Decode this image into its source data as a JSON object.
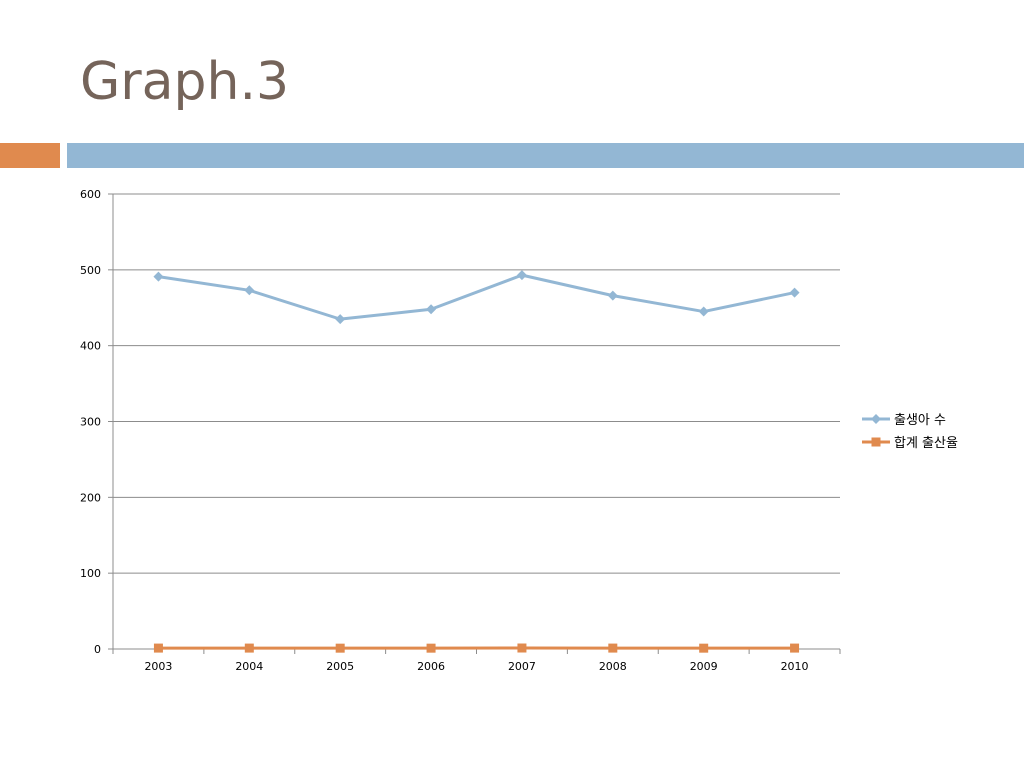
{
  "slide": {
    "title": "Graph.3"
  },
  "colors": {
    "accent_orange": "#e08a4e",
    "accent_blue": "#93b7d4",
    "title": "#75645a"
  },
  "chart_data": {
    "type": "line",
    "title": "",
    "xlabel": "",
    "ylabel": "",
    "categories": [
      "2003",
      "2004",
      "2005",
      "2006",
      "2007",
      "2008",
      "2009",
      "2010"
    ],
    "ylim": [
      0,
      600
    ],
    "yticks": [
      "0",
      "100",
      "200",
      "300",
      "400",
      "500",
      "600"
    ],
    "grid": true,
    "legend_position": "right",
    "series": [
      {
        "name": "출생아 수",
        "color": "#93b7d4",
        "marker": "diamond",
        "values": [
          491,
          473,
          435,
          448,
          493,
          466,
          445,
          470
        ]
      },
      {
        "name": "합계 출산율",
        "color": "#e08a4e",
        "marker": "square",
        "values": [
          1.2,
          1.2,
          1.1,
          1.1,
          1.3,
          1.2,
          1.1,
          1.2
        ]
      }
    ]
  }
}
